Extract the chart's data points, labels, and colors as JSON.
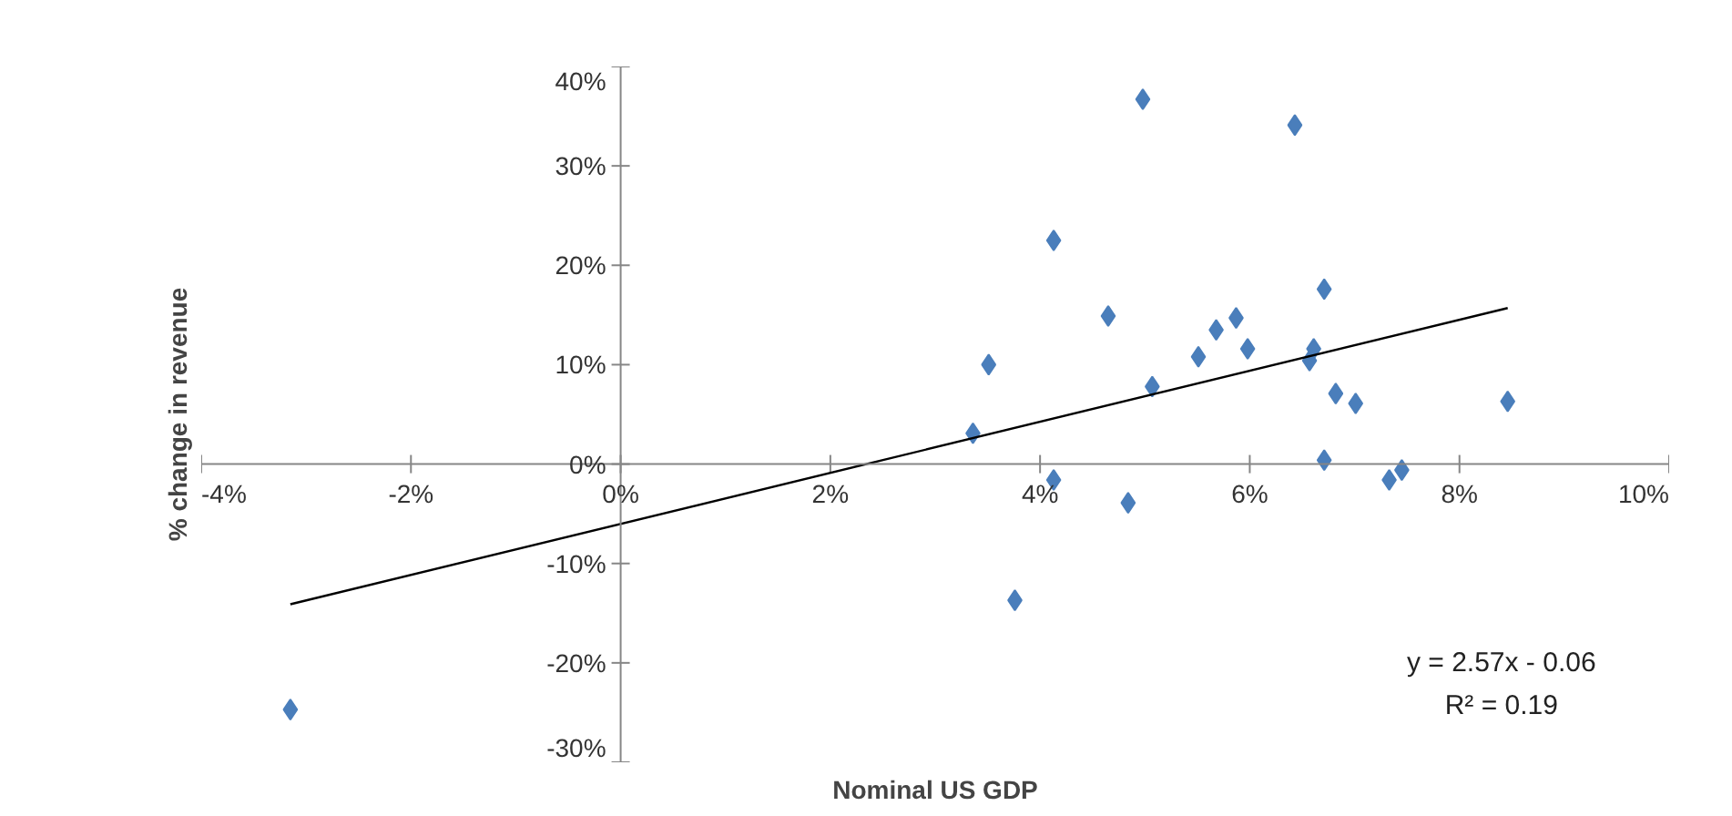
{
  "chart_data": {
    "type": "scatter",
    "xlabel": "Nominal US GDP",
    "ylabel": "% change in revenue",
    "xlim": [
      -4,
      10
    ],
    "ylim": [
      -30,
      40
    ],
    "xticks": [
      {
        "value": -4,
        "label": "-4%"
      },
      {
        "value": -2,
        "label": "-2%"
      },
      {
        "value": 0,
        "label": "0%"
      },
      {
        "value": 2,
        "label": "2%"
      },
      {
        "value": 4,
        "label": "4%"
      },
      {
        "value": 6,
        "label": "6%"
      },
      {
        "value": 8,
        "label": "8%"
      },
      {
        "value": 10,
        "label": "10%"
      }
    ],
    "yticks": [
      {
        "value": -30,
        "label": "-30%"
      },
      {
        "value": -20,
        "label": "-20%"
      },
      {
        "value": -10,
        "label": "-10%"
      },
      {
        "value": 0,
        "label": "0%"
      },
      {
        "value": 10,
        "label": "10%"
      },
      {
        "value": 20,
        "label": "20%"
      },
      {
        "value": 30,
        "label": "30%"
      },
      {
        "value": 40,
        "label": "40%"
      }
    ],
    "grid": false,
    "marker": "diamond",
    "series": [
      {
        "type": "scatter",
        "color": "#4a7ebb",
        "x": [
          -3.15,
          3.36,
          3.51,
          4.13,
          4.13,
          3.76,
          4.65,
          4.84,
          4.98,
          5.07,
          5.51,
          5.68,
          5.87,
          5.98,
          6.43,
          6.57,
          6.61,
          6.71,
          6.71,
          6.82,
          7.01,
          7.33,
          7.45,
          8.46
        ],
        "values": [
          -24.7,
          3.1,
          10.0,
          22.5,
          -1.6,
          -13.7,
          14.9,
          -3.9,
          36.7,
          7.8,
          10.8,
          13.5,
          14.7,
          11.6,
          34.1,
          10.4,
          11.6,
          17.6,
          0.4,
          7.1,
          6.1,
          -1.6,
          -0.6,
          6.3
        ]
      },
      {
        "type": "line",
        "color": "#000000",
        "marker": "none",
        "line_style": "solid",
        "x": [
          -3.15,
          8.46
        ],
        "values": [
          -14.1,
          15.7
        ]
      }
    ],
    "annotations": [
      "y = 2.57x - 0.06",
      "R² = 0.19"
    ]
  }
}
